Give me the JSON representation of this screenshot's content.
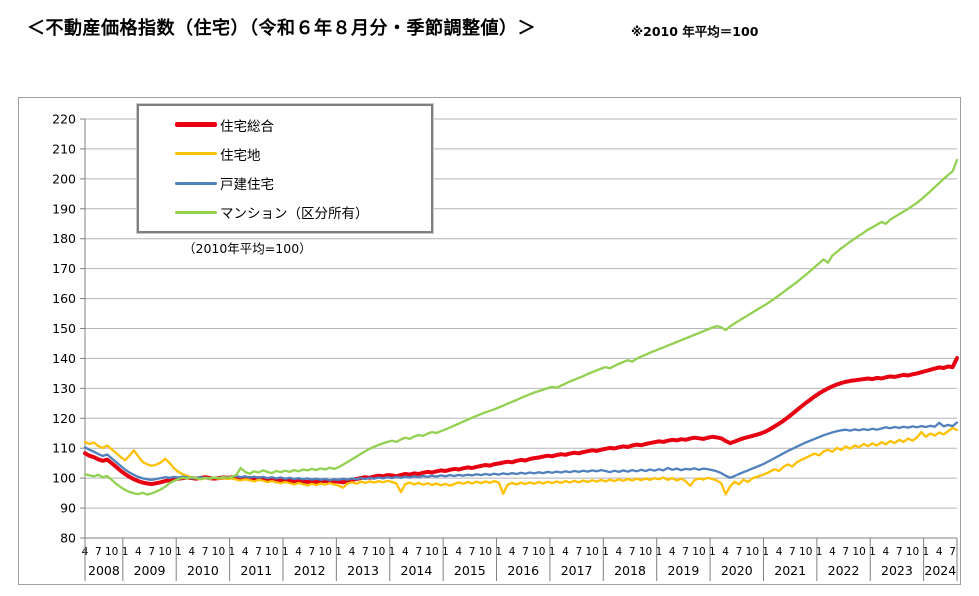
{
  "page": {
    "title": "＜不動産価格指数（住宅）（令和６年８月分・季節調整値）＞",
    "note": "※2010 年平均＝100"
  },
  "legend": {
    "axis_note": "（2010年平均=100）"
  },
  "colors": {
    "grid": "#b5b5b5",
    "axis": "#808080",
    "chart_border": "#a0a0a0",
    "legend_border": "#7f7f7f",
    "text": "#000000",
    "background": "#ffffff"
  },
  "chart_data": {
    "type": "line",
    "title": "不動産価格指数（住宅）（令和6年8月分・季節調整値）",
    "subtitle": "2010年平均=100",
    "x_start": {
      "year": 2008,
      "month": 4
    },
    "x_end": {
      "year": 2024,
      "month": 8
    },
    "x_tick_interval_months": 3,
    "y_axis": {
      "min": 80,
      "max": 220,
      "step": 10
    },
    "grid": "horizontal-only",
    "legend_position": "top-left-inside",
    "year_labels": [
      "2008",
      "2009",
      "2010",
      "2011",
      "2012",
      "2013",
      "2014",
      "2015",
      "2016",
      "2017",
      "2018",
      "2019",
      "2020",
      "2021",
      "2022",
      "2023",
      "2024"
    ],
    "series": [
      {
        "name": "住宅総合",
        "color": "#e60012",
        "width": 4,
        "values": [
          108.3,
          107.5,
          107.0,
          106.3,
          105.8,
          106.2,
          105.0,
          103.8,
          102.5,
          101.4,
          100.4,
          99.6,
          99.0,
          98.5,
          98.2,
          98.0,
          98.3,
          98.6,
          99.0,
          99.3,
          99.5,
          99.8,
          100.0,
          100.2,
          100.0,
          99.8,
          100.1,
          100.3,
          100.0,
          99.8,
          100.0,
          100.2,
          100.1,
          100.3,
          100.0,
          99.7,
          99.9,
          100.1,
          99.8,
          100.0,
          99.7,
          99.5,
          99.7,
          99.4,
          99.2,
          99.4,
          99.1,
          98.9,
          99.2,
          98.9,
          98.7,
          99.0,
          98.7,
          98.9,
          99.1,
          98.8,
          99.0,
          98.8,
          98.6,
          99.0,
          99.4,
          99.7,
          100.0,
          100.3,
          100.1,
          100.5,
          100.8,
          100.6,
          101.0,
          100.9,
          100.6,
          101.1,
          101.4,
          101.2,
          101.6,
          101.4,
          101.8,
          102.1,
          101.9,
          102.3,
          102.6,
          102.4,
          102.8,
          103.1,
          102.9,
          103.3,
          103.6,
          103.4,
          103.8,
          104.1,
          104.4,
          104.2,
          104.7,
          104.9,
          105.2,
          105.5,
          105.3,
          105.8,
          106.1,
          105.9,
          106.4,
          106.7,
          106.9,
          107.2,
          107.5,
          107.3,
          107.7,
          108.0,
          107.8,
          108.2,
          108.5,
          108.3,
          108.7,
          109.0,
          109.3,
          109.1,
          109.5,
          109.8,
          110.1,
          109.9,
          110.3,
          110.6,
          110.4,
          110.9,
          111.2,
          111.0,
          111.4,
          111.7,
          112.0,
          112.3,
          112.1,
          112.5,
          112.8,
          112.6,
          113.0,
          112.8,
          113.2,
          113.5,
          113.3,
          113.1,
          113.5,
          113.8,
          113.6,
          113.3,
          112.4,
          111.7,
          112.2,
          112.8,
          113.3,
          113.7,
          114.1,
          114.5,
          115.0,
          115.6,
          116.4,
          117.3,
          118.2,
          119.2,
          120.3,
          121.5,
          122.7,
          123.9,
          125.1,
          126.2,
          127.3,
          128.3,
          129.2,
          130.0,
          130.7,
          131.3,
          131.8,
          132.2,
          132.5,
          132.7,
          132.9,
          133.1,
          133.3,
          133.1,
          133.5,
          133.3,
          133.7,
          134.0,
          133.8,
          134.2,
          134.5,
          134.3,
          134.7,
          135.0,
          135.4,
          135.8,
          136.2,
          136.6,
          137.0,
          136.8,
          137.3,
          137.1,
          140.1
        ]
      },
      {
        "name": "住宅地",
        "color": "#ffc000",
        "width": 2.3,
        "values": [
          112.1,
          111.4,
          111.9,
          110.7,
          110.1,
          110.9,
          109.6,
          108.4,
          107.1,
          106.0,
          107.5,
          109.3,
          107.2,
          105.4,
          104.6,
          104.1,
          104.5,
          105.2,
          106.5,
          105.1,
          103.3,
          102.1,
          101.3,
          100.7,
          100.2,
          99.9,
          99.6,
          100.0,
          99.7,
          100.1,
          99.8,
          100.0,
          99.7,
          99.9,
          99.5,
          99.2,
          99.6,
          99.3,
          98.9,
          99.4,
          99.1,
          98.7,
          99.0,
          98.6,
          98.3,
          98.7,
          98.3,
          97.9,
          98.4,
          98.0,
          97.6,
          98.1,
          97.7,
          98.2,
          97.8,
          98.3,
          97.9,
          97.5,
          96.8,
          98.2,
          98.6,
          98.1,
          98.8,
          98.4,
          98.9,
          98.5,
          99.0,
          98.6,
          99.1,
          98.7,
          98.2,
          95.3,
          98.0,
          98.5,
          97.9,
          98.4,
          97.8,
          98.3,
          97.7,
          98.2,
          97.6,
          98.1,
          97.5,
          98.0,
          98.6,
          98.1,
          98.7,
          98.2,
          98.8,
          98.3,
          98.9,
          98.4,
          99.0,
          98.5,
          94.8,
          97.8,
          98.4,
          97.9,
          98.5,
          98.0,
          98.6,
          98.1,
          98.7,
          98.2,
          98.8,
          98.3,
          98.9,
          98.4,
          99.0,
          98.5,
          99.1,
          98.6,
          99.2,
          98.7,
          99.3,
          98.8,
          99.4,
          98.9,
          99.5,
          99.0,
          99.6,
          99.1,
          99.7,
          99.2,
          99.8,
          99.3,
          99.9,
          99.4,
          100.0,
          99.6,
          100.2,
          99.4,
          100.0,
          99.2,
          99.8,
          99.0,
          97.4,
          99.3,
          99.9,
          99.5,
          100.1,
          99.7,
          99.2,
          98.3,
          94.6,
          97.2,
          98.8,
          97.9,
          99.5,
          98.7,
          99.9,
          100.4,
          100.9,
          101.5,
          102.2,
          103.0,
          102.4,
          103.8,
          104.6,
          103.9,
          105.3,
          106.1,
          106.8,
          107.5,
          108.2,
          107.6,
          108.9,
          109.5,
          108.8,
          110.1,
          109.4,
          110.6,
          109.8,
          110.9,
          110.3,
          111.4,
          110.7,
          111.6,
          110.9,
          112.0,
          111.3,
          112.4,
          111.7,
          112.8,
          112.1,
          113.2,
          112.5,
          113.6,
          115.4,
          113.8,
          114.9,
          114.2,
          115.3,
          114.6,
          115.7,
          116.8,
          116.1
        ]
      },
      {
        "name": "戸建住宅",
        "color": "#5081bd",
        "width": 2.3,
        "values": [
          110.3,
          109.5,
          108.8,
          108.1,
          107.4,
          107.9,
          106.6,
          105.4,
          104.1,
          102.9,
          101.9,
          101.1,
          100.4,
          99.9,
          99.6,
          99.4,
          99.7,
          100.0,
          100.3,
          100.1,
          100.4,
          100.2,
          100.5,
          100.2,
          99.9,
          100.1,
          100.3,
          100.0,
          99.8,
          100.2,
          100.0,
          100.3,
          100.1,
          100.4,
          100.7,
          100.3,
          100.6,
          100.2,
          100.5,
          100.1,
          100.4,
          100.0,
          100.3,
          99.9,
          100.2,
          99.8,
          100.1,
          99.7,
          100.0,
          99.6,
          99.9,
          99.5,
          99.8,
          99.4,
          99.7,
          99.3,
          99.6,
          99.4,
          99.8,
          99.5,
          99.9,
          99.6,
          100.0,
          99.7,
          100.1,
          99.8,
          100.2,
          99.9,
          100.3,
          100.0,
          100.4,
          100.1,
          100.5,
          100.2,
          100.6,
          100.3,
          100.7,
          100.4,
          100.8,
          100.5,
          100.9,
          100.6,
          101.0,
          100.7,
          101.1,
          100.8,
          101.2,
          100.9,
          101.3,
          101.0,
          101.4,
          101.1,
          101.5,
          101.2,
          101.6,
          101.3,
          101.7,
          101.4,
          101.8,
          101.5,
          101.9,
          101.6,
          102.0,
          101.7,
          102.1,
          101.8,
          102.2,
          101.9,
          102.3,
          102.0,
          102.4,
          102.1,
          102.5,
          102.2,
          102.6,
          102.3,
          102.7,
          102.4,
          102.0,
          102.5,
          102.1,
          102.6,
          102.2,
          102.7,
          102.3,
          102.8,
          102.4,
          102.9,
          102.5,
          103.0,
          102.6,
          103.4,
          102.8,
          103.2,
          102.7,
          103.1,
          102.9,
          103.3,
          102.8,
          103.2,
          103.0,
          102.7,
          102.3,
          101.7,
          100.8,
          100.1,
          100.7,
          101.4,
          102.0,
          102.6,
          103.2,
          103.8,
          104.4,
          105.1,
          105.9,
          106.7,
          107.5,
          108.3,
          109.1,
          109.8,
          110.5,
          111.2,
          111.9,
          112.5,
          113.1,
          113.7,
          114.3,
          114.8,
          115.3,
          115.7,
          116.0,
          116.2,
          115.9,
          116.3,
          116.0,
          116.4,
          116.1,
          116.5,
          116.2,
          116.6,
          117.0,
          116.7,
          117.1,
          116.8,
          117.2,
          116.9,
          117.3,
          117.0,
          117.4,
          117.1,
          117.5,
          117.2,
          118.5,
          117.3,
          117.8,
          117.4,
          118.6
        ]
      },
      {
        "name": "マンション（区分所有）",
        "color": "#92d050",
        "width": 2.3,
        "values": [
          101.3,
          100.9,
          100.6,
          101.1,
          100.3,
          100.7,
          99.4,
          98.1,
          97.0,
          96.1,
          95.4,
          94.9,
          94.7,
          95.1,
          94.5,
          94.9,
          95.5,
          96.2,
          97.1,
          98.3,
          99.1,
          99.7,
          100.1,
          99.9,
          100.3,
          100.0,
          99.7,
          100.1,
          99.9,
          100.2,
          100.0,
          100.3,
          100.1,
          100.4,
          101.1,
          103.4,
          102.1,
          101.5,
          102.3,
          101.9,
          102.6,
          102.1,
          101.7,
          102.4,
          102.0,
          102.5,
          102.1,
          102.7,
          102.3,
          102.9,
          102.6,
          103.1,
          102.7,
          103.3,
          102.9,
          103.5,
          103.1,
          103.7,
          104.5,
          105.4,
          106.3,
          107.2,
          108.1,
          109.0,
          109.8,
          110.5,
          111.1,
          111.6,
          112.1,
          112.5,
          112.1,
          112.9,
          113.5,
          113.1,
          113.9,
          114.4,
          114.1,
          114.9,
          115.4,
          115.1,
          115.7,
          116.3,
          116.9,
          117.6,
          118.2,
          118.9,
          119.5,
          120.2,
          120.8,
          121.4,
          122.0,
          122.5,
          123.0,
          123.6,
          124.2,
          124.9,
          125.5,
          126.1,
          126.8,
          127.4,
          128.0,
          128.6,
          129.1,
          129.6,
          130.1,
          130.5,
          130.2,
          130.9,
          131.6,
          132.3,
          132.9,
          133.5,
          134.1,
          134.8,
          135.4,
          136.0,
          136.6,
          137.1,
          136.7,
          137.5,
          138.2,
          138.8,
          139.4,
          138.9,
          139.9,
          140.6,
          141.2,
          141.9,
          142.5,
          143.1,
          143.7,
          144.3,
          144.9,
          145.5,
          146.1,
          146.7,
          147.3,
          147.9,
          148.5,
          149.1,
          149.7,
          150.3,
          150.8,
          150.4,
          149.5,
          150.7,
          151.7,
          152.6,
          153.5,
          154.4,
          155.3,
          156.2,
          157.1,
          158.0,
          159.0,
          160.0,
          161.1,
          162.2,
          163.3,
          164.4,
          165.5,
          166.7,
          167.9,
          169.2,
          170.5,
          171.8,
          173.1,
          172.0,
          174.4,
          175.6,
          176.8,
          177.9,
          179.0,
          180.0,
          181.0,
          182.0,
          183.0,
          183.8,
          184.7,
          185.6,
          185.0,
          186.4,
          187.3,
          188.2,
          189.1,
          190.0,
          191.0,
          192.0,
          193.2,
          194.5,
          195.8,
          197.2,
          198.6,
          200.0,
          201.3,
          202.5,
          206.3
        ]
      }
    ]
  }
}
